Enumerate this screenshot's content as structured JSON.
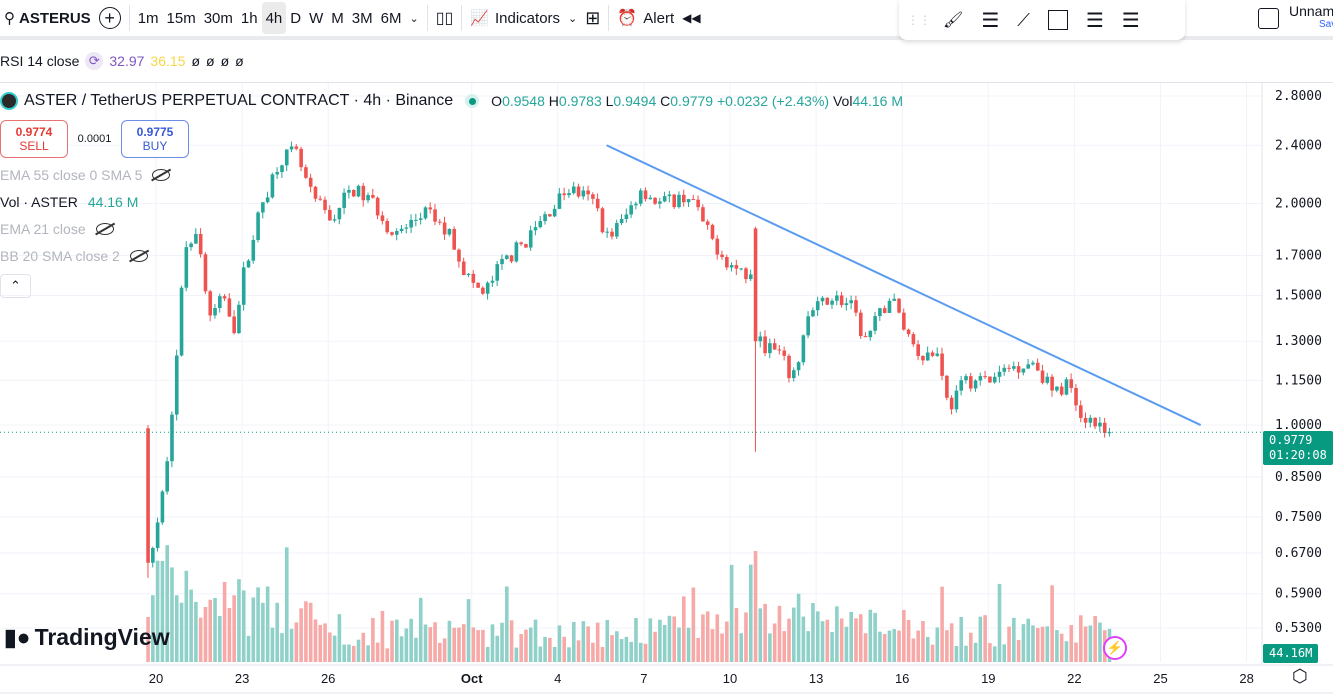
{
  "toolbar": {
    "symbol": "ASTERUS",
    "intervals": [
      "1m",
      "15m",
      "30m",
      "1h",
      "4h",
      "D",
      "W",
      "M",
      "3M",
      "6M"
    ],
    "active_interval": "4h",
    "indicators_label": "Indicators",
    "alert_label": "Alert",
    "layout_name": "Unnamed",
    "save_label": "Save"
  },
  "rsi_row": {
    "label": "RSI 14 close",
    "value1": "32.97",
    "value2": "36.15",
    "extras": [
      "ø",
      "ø",
      "ø",
      "ø"
    ]
  },
  "legend": {
    "title": "ASTER / TetherUS PERPETUAL CONTRACT · 4h · Binance",
    "o_label": "O",
    "o": "0.9548",
    "h_label": "H",
    "h": "0.9783",
    "l_label": "L",
    "l": "0.9494",
    "c_label": "C",
    "c": "0.9779",
    "change": "+0.0232 (+2.43%)",
    "vol_label": "Vol",
    "vol": "44.16 M"
  },
  "trade": {
    "sell_price": "0.9774",
    "sell_label": "SELL",
    "spread": "0.0001",
    "buy_price": "0.9775",
    "buy_label": "BUY"
  },
  "indicators": [
    {
      "label": "EMA 55 close 0 SMA 5",
      "hidden": true
    },
    {
      "label": "Vol · ASTER",
      "value": "44.16 M"
    },
    {
      "label": "EMA 21 close",
      "hidden": true
    },
    {
      "label": "BB 20 SMA close 2",
      "hidden": true
    }
  ],
  "branding": "TradingView",
  "price_tag": {
    "price": "0.9779",
    "countdown": "01:20:08"
  },
  "volume_tag": "44.16M",
  "colors": {
    "up": "#26a69a",
    "down": "#ef5350",
    "up_vol": "#8fd1c9",
    "down_vol": "#f7a9a7",
    "trend": "#5b9cf0",
    "tag": "#089981"
  },
  "chart_data": {
    "type": "candlestick",
    "scale": "log",
    "interval_days": 0.1666667,
    "price_ticks": [
      "2.8000",
      "2.4000",
      "2.0000",
      "1.7000",
      "1.5000",
      "1.3000",
      "1.1500",
      "1.0000",
      "0.8500",
      "0.7500",
      "0.6700",
      "0.5900",
      "0.5300"
    ],
    "time_ticks": [
      {
        "label": "20",
        "day": 0
      },
      {
        "label": "23",
        "day": 3
      },
      {
        "label": "26",
        "day": 6
      },
      {
        "label": "Oct",
        "day": 11
      },
      {
        "label": "4",
        "day": 14
      },
      {
        "label": "7",
        "day": 17
      },
      {
        "label": "10",
        "day": 20
      },
      {
        "label": "13",
        "day": 23
      },
      {
        "label": "16",
        "day": 26
      },
      {
        "label": "19",
        "day": 29
      },
      {
        "label": "22",
        "day": 32
      },
      {
        "label": "25",
        "day": 35
      },
      {
        "label": "28",
        "day": 38
      }
    ],
    "close_path": [
      [
        -0.28,
        0.65
      ],
      [
        0.14,
        0.75
      ],
      [
        0.5,
        1.0
      ],
      [
        0.77,
        1.3
      ],
      [
        1.0,
        1.75
      ],
      [
        1.4,
        1.85
      ],
      [
        1.88,
        1.4
      ],
      [
        2.4,
        1.5
      ],
      [
        2.75,
        1.35
      ],
      [
        3.1,
        1.65
      ],
      [
        3.7,
        2.0
      ],
      [
        4.3,
        2.3
      ],
      [
        4.85,
        2.35
      ],
      [
        5.4,
        2.05
      ],
      [
        6.1,
        1.9
      ],
      [
        6.8,
        2.1
      ],
      [
        7.6,
        2.0
      ],
      [
        8.3,
        1.8
      ],
      [
        9.4,
        1.95
      ],
      [
        10.3,
        1.8
      ],
      [
        10.8,
        1.6
      ],
      [
        11.4,
        1.5
      ],
      [
        12,
        1.65
      ],
      [
        13,
        1.8
      ],
      [
        13.9,
        2.0
      ],
      [
        14.4,
        2.1
      ],
      [
        15.3,
        2.0
      ],
      [
        15.7,
        1.8
      ],
      [
        16.3,
        1.9
      ],
      [
        16.9,
        2.1
      ],
      [
        17.5,
        2.0
      ],
      [
        18.6,
        2.05
      ],
      [
        19.3,
        1.8
      ],
      [
        20,
        1.65
      ],
      [
        20.7,
        1.6
      ],
      [
        20.85,
        1.85
      ],
      [
        20.95,
        1.3
      ],
      [
        21.7,
        1.25
      ],
      [
        22.2,
        1.15
      ],
      [
        22.7,
        1.4
      ],
      [
        23.5,
        1.5
      ],
      [
        24.2,
        1.45
      ],
      [
        24.7,
        1.3
      ],
      [
        25.6,
        1.5
      ],
      [
        26.1,
        1.35
      ],
      [
        26.6,
        1.25
      ],
      [
        27.3,
        1.25
      ],
      [
        27.6,
        1.05
      ],
      [
        28.2,
        1.15
      ],
      [
        29.1,
        1.15
      ],
      [
        29.8,
        1.2
      ],
      [
        30.6,
        1.22
      ],
      [
        31.3,
        1.1
      ],
      [
        31.9,
        1.15
      ],
      [
        32.2,
        1.03
      ],
      [
        32.7,
        1.02
      ],
      [
        33.1,
        0.96
      ],
      [
        33.3,
        0.9779
      ]
    ],
    "notable_candles": [
      {
        "day": -0.28,
        "o": 0.99,
        "h": 1.0,
        "l": 0.62,
        "c": 0.65
      },
      {
        "day": 20.95,
        "o": 1.85,
        "h": 1.86,
        "l": 0.92,
        "c": 1.3
      }
    ],
    "volume_path_m": [
      [
        -0.28,
        60
      ],
      [
        0,
        120
      ],
      [
        2,
        90
      ],
      [
        4,
        70
      ],
      [
        8,
        40
      ],
      [
        14,
        40
      ],
      [
        20,
        50
      ],
      [
        20.95,
        160
      ],
      [
        21.5,
        70
      ],
      [
        25,
        50
      ],
      [
        30,
        45
      ],
      [
        33.3,
        44.16
      ]
    ],
    "trend_line": {
      "start": [
        15.7,
        2.4
      ],
      "end": [
        36.4,
        1.0
      ]
    },
    "last_price": 0.9779
  }
}
